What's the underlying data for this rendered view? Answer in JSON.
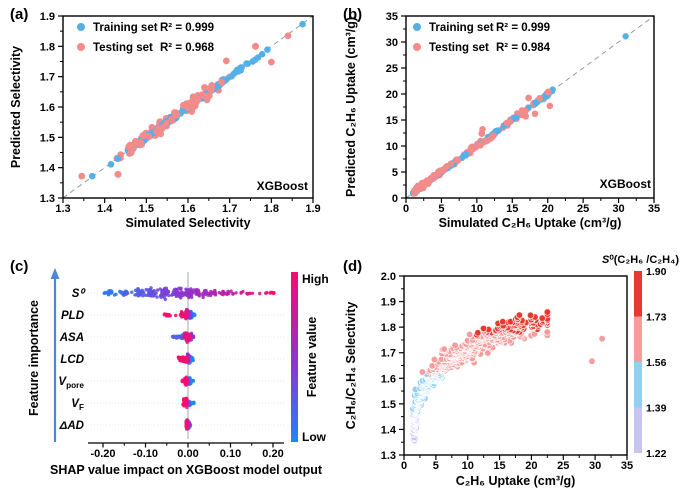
{
  "colors": {
    "train_blue": "#55b0ea",
    "test_pink": "#f48b8b",
    "band_red": "#e9392f",
    "band_pink": "#f59d9d",
    "band_blue": "#8ed1f5",
    "band_lavender": "#c7c4f1",
    "shap_blue": "#1e86f8",
    "shap_purple": "#9032cf",
    "shap_red": "#f70d6e",
    "dash": "#999999",
    "arrow_blue": "#4e86d6",
    "zero_line": "#b3b3b3",
    "axis": "#000000"
  },
  "chart_data": [
    {
      "id": "a",
      "type": "scatter",
      "panel_label": "(a)",
      "xlabel": "Simulated Selectivity",
      "ylabel": "Predicted Selectivity",
      "annotation": "XGBoost",
      "xlim": [
        1.3,
        1.9
      ],
      "ylim": [
        1.3,
        1.9
      ],
      "xticks": [
        1.3,
        1.4,
        1.5,
        1.6,
        1.7,
        1.8,
        1.9
      ],
      "xtick_labels": [
        "1.3",
        "1.4",
        "1.5",
        "1.6",
        "1.7",
        "1.8",
        "1.9"
      ],
      "xminor": [
        1.35,
        1.45,
        1.55,
        1.65,
        1.75,
        1.85
      ],
      "yticks": [
        1.3,
        1.4,
        1.5,
        1.6,
        1.7,
        1.8,
        1.9
      ],
      "ytick_labels": [
        "1.3",
        "1.4",
        "1.5",
        "1.6",
        "1.7",
        "1.8",
        "1.9"
      ],
      "yminor": [
        1.35,
        1.45,
        1.55,
        1.65,
        1.75,
        1.85
      ],
      "identity_line": true,
      "legend": [
        {
          "label": "Training set",
          "r2": "R² = 0.999",
          "color_key": "train_blue"
        },
        {
          "label": "Testing set",
          "r2": "R² = 0.968",
          "color_key": "test_pink"
        }
      ],
      "series": [
        {
          "name": "Training set",
          "color_key": "train_blue",
          "n": 115,
          "x_mean": 1.6,
          "x_sd": 0.13,
          "x_min": 1.365,
          "x_max": 1.885,
          "y_noise": 0.005,
          "extra": [
            [
              1.37,
              1.372
            ],
            [
              1.875,
              1.873
            ]
          ]
        },
        {
          "name": "Testing set",
          "color_key": "test_pink",
          "n": 125,
          "x_mean": 1.57,
          "x_sd": 0.115,
          "x_min": 1.345,
          "x_max": 1.85,
          "y_noise": 0.016,
          "extra": [
            [
              1.345,
              1.372
            ],
            [
              1.432,
              1.378
            ],
            [
              1.8,
              1.748
            ],
            [
              1.692,
              1.752
            ],
            [
              1.762,
              1.8
            ],
            [
              1.84,
              1.835
            ]
          ]
        }
      ]
    },
    {
      "id": "b",
      "type": "scatter",
      "panel_label": "(b)",
      "xlabel": "Simulated C₂H₆ Uptake (cm³/g)",
      "ylabel": "Predicted C₂H₆ Uptake (cm³/g)",
      "annotation": "XGBoost",
      "xlim": [
        0,
        35
      ],
      "ylim": [
        0,
        35
      ],
      "xticks": [
        0,
        5,
        10,
        15,
        20,
        25,
        30,
        35
      ],
      "xtick_labels": [
        "0",
        "5",
        "10",
        "15",
        "20",
        "25",
        "30",
        "35"
      ],
      "xminor": [
        2.5,
        7.5,
        12.5,
        17.5,
        22.5,
        27.5,
        32.5
      ],
      "yticks": [
        0,
        5,
        10,
        15,
        20,
        25,
        30,
        35
      ],
      "ytick_labels": [
        "0",
        "5",
        "10",
        "15",
        "20",
        "25",
        "30",
        "35"
      ],
      "yminor": [
        2.5,
        7.5,
        12.5,
        17.5,
        22.5,
        27.5,
        32.5
      ],
      "identity_line": true,
      "legend": [
        {
          "label": "Training set",
          "r2": "R² = 0.999",
          "color_key": "train_blue"
        },
        {
          "label": "Testing set",
          "r2": "R² = 0.984",
          "color_key": "test_pink"
        }
      ],
      "series": [
        {
          "name": "Training set",
          "color_key": "train_blue",
          "n": 105,
          "x_base": 1.0,
          "x_span": 20.2,
          "x_pow": 1.9,
          "y_noise": 0.18,
          "extra": [
            [
              31.0,
              31.1
            ],
            [
              20.7,
              20.85
            ],
            [
              19.9,
              19.55
            ],
            [
              18.3,
              18.15
            ]
          ]
        },
        {
          "name": "Testing set",
          "color_key": "test_pink",
          "n": 128,
          "x_base": 1.2,
          "x_span": 19.0,
          "x_pow": 2.1,
          "y_noise": 0.42,
          "extra": [
            [
              20.3,
              17.7
            ],
            [
              17.3,
              19.25
            ],
            [
              18.2,
              16.2
            ],
            [
              10.8,
              13.2
            ],
            [
              10.7,
              12.4
            ],
            [
              16.9,
              15.7
            ]
          ]
        }
      ]
    },
    {
      "id": "c",
      "type": "beeswarm",
      "panel_label": "(c)",
      "xlabel": "SHAP value impact on XGBoost model output",
      "left_axis_label": "Feature importance",
      "xlim": [
        -0.24,
        0.23
      ],
      "xticks": [
        -0.2,
        -0.1,
        0.0,
        0.1,
        0.2
      ],
      "xtick_labels": [
        "-0.20",
        "-0.10",
        "0.00",
        "0.10",
        "0.20"
      ],
      "xminor": [
        -0.15,
        -0.05,
        0.05,
        0.15
      ],
      "colorbar": {
        "high": "High",
        "low": "Low",
        "label": "Feature value",
        "gradient_keys": [
          "shap_red",
          "shap_purple",
          "shap_blue"
        ]
      },
      "features": [
        {
          "name": "S0",
          "segments": [
            {
              "t": "S⁰",
              "italic": 1
            }
          ],
          "profile": "s0",
          "clusters": [
            [
              -0.185,
              0.012,
              18,
              2.5
            ],
            [
              -0.15,
              0.012,
              22,
              3
            ],
            [
              -0.115,
              0.012,
              30,
              4.5
            ],
            [
              -0.085,
              0.01,
              34,
              5.5
            ],
            [
              -0.055,
              0.012,
              38,
              6.5
            ],
            [
              -0.025,
              0.012,
              40,
              6
            ],
            [
              0.0,
              0.01,
              36,
              5
            ],
            [
              0.025,
              0.012,
              30,
              4.5
            ],
            [
              0.055,
              0.015,
              22,
              3
            ],
            [
              0.09,
              0.02,
              16,
              2
            ],
            [
              0.14,
              0.025,
              12,
              1.5
            ],
            [
              0.19,
              0.02,
              8,
              1.2
            ]
          ]
        },
        {
          "name": "PLD",
          "segments": [
            {
              "t": "PLD",
              "italic": 1
            }
          ],
          "profile": "pld",
          "clusters": [
            [
              -0.045,
              0.012,
              14,
              1.2
            ],
            [
              -0.012,
              0.006,
              30,
              3.5
            ],
            [
              -0.002,
              0.004,
              45,
              6
            ],
            [
              0.006,
              0.004,
              35,
              4
            ],
            [
              0.013,
              0.004,
              12,
              1.5
            ]
          ]
        },
        {
          "name": "ASA",
          "segments": [
            {
              "t": "ASA",
              "italic": 1
            }
          ],
          "profile": "asa",
          "clusters": [
            [
              -0.028,
              0.008,
              16,
              1.5
            ],
            [
              -0.014,
              0.005,
              18,
              2.5
            ],
            [
              -0.003,
              0.004,
              40,
              5.5
            ],
            [
              0.004,
              0.004,
              30,
              4
            ],
            [
              0.012,
              0.004,
              10,
              1.5
            ]
          ]
        },
        {
          "name": "LCD",
          "segments": [
            {
              "t": "LCD",
              "italic": 1
            }
          ],
          "profile": "lcd",
          "clusters": [
            [
              -0.018,
              0.006,
              20,
              2.5
            ],
            [
              -0.007,
              0.004,
              28,
              4
            ],
            [
              0.002,
              0.004,
              40,
              5.5
            ],
            [
              0.009,
              0.003,
              15,
              2.5
            ]
          ]
        },
        {
          "name": "Vpore",
          "segments": [
            {
              "t": "V",
              "italic": 1
            },
            {
              "t": "pore",
              "sub": 1
            }
          ],
          "profile": "vpore",
          "clusters": [
            [
              -0.012,
              0.003,
              8,
              1.2
            ],
            [
              -0.005,
              0.0035,
              40,
              4.5
            ],
            [
              0.004,
              0.003,
              35,
              4
            ],
            [
              0.011,
              0.002,
              6,
              1
            ]
          ]
        },
        {
          "name": "VF",
          "segments": [
            {
              "t": "V",
              "italic": 1
            },
            {
              "t": "F",
              "sub": 1
            }
          ],
          "profile": "vf",
          "clusters": [
            [
              -0.006,
              0.004,
              45,
              5
            ],
            [
              0.004,
              0.0035,
              25,
              3
            ],
            [
              0.012,
              0.002,
              5,
              1
            ]
          ]
        },
        {
          "name": "dAD",
          "segments": [
            {
              "t": "ΔAD",
              "italic": 1
            }
          ],
          "profile": "dad",
          "clusters": [
            [
              -0.001,
              0.003,
              45,
              5.5
            ],
            [
              0.004,
              0.002,
              15,
              2.5
            ]
          ]
        }
      ]
    },
    {
      "id": "d",
      "type": "scatter",
      "panel_label": "(d)",
      "xlabel": "C₂H₆ Uptake (cm³/g)",
      "ylabel": "C₂H₆/C₂H₄ Selectivity",
      "xlim": [
        0,
        35
      ],
      "ylim": [
        1.3,
        2.0
      ],
      "xticks": [
        0,
        5,
        10,
        15,
        20,
        25,
        30,
        35
      ],
      "xtick_labels": [
        "0",
        "5",
        "10",
        "15",
        "20",
        "25",
        "30",
        "35"
      ],
      "xminor": [
        2.5,
        7.5,
        12.5,
        17.5,
        22.5,
        27.5,
        32.5
      ],
      "yticks": [
        1.3,
        1.4,
        1.5,
        1.6,
        1.7,
        1.8,
        1.9,
        2.0
      ],
      "ytick_labels": [
        "1.3",
        "1.4",
        "1.5",
        "1.6",
        "1.7",
        "1.8",
        "1.9",
        "2.0"
      ],
      "yminor": [
        1.35,
        1.45,
        1.55,
        1.65,
        1.75,
        1.85,
        1.95
      ],
      "cloud": {
        "n": 620,
        "t_pow": 2.2,
        "x_base": 1.6,
        "x_span": 20,
        "x_jitter": 0.14,
        "y_base": 1.385,
        "y_span": 0.445,
        "y_pow": 0.78,
        "y_noise": 0.034,
        "thresholds": {
          "lavender": 1.45,
          "blue": 1.617,
          "pink": 1.777
        }
      },
      "outliers": [
        [
          29.5,
          1.667
        ],
        [
          31.1,
          1.755
        ]
      ],
      "colorbar": {
        "title_segments": [
          {
            "t": "S",
            "italic": 1
          },
          {
            "t": "⁰(C₂H₆ /C₂H₄)"
          }
        ],
        "tick_labels": [
          "1.90",
          "1.73",
          "1.56",
          "1.39",
          "1.22"
        ],
        "band_color_keys": [
          "band_red",
          "band_pink",
          "band_blue",
          "band_lavender"
        ]
      }
    }
  ]
}
